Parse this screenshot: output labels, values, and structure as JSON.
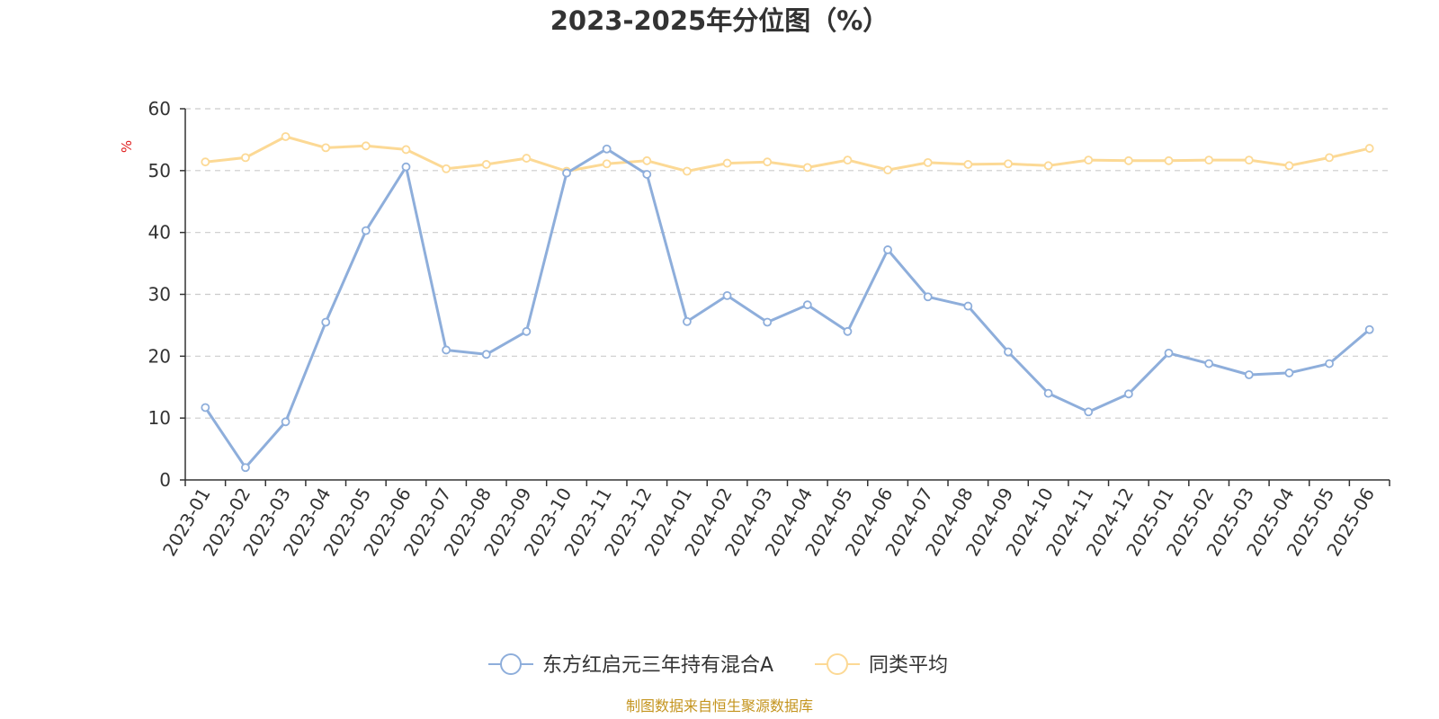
{
  "chart_data": {
    "type": "line",
    "title": "2023-2025年分位图（%）",
    "ylabel": "%",
    "xlabel": "",
    "ylim": [
      0,
      60
    ],
    "yticks": [
      0,
      10,
      20,
      30,
      40,
      50,
      60
    ],
    "grid": true,
    "legend_position": "bottom-center",
    "categories": [
      "2023-01",
      "2023-02",
      "2023-03",
      "2023-04",
      "2023-05",
      "2023-06",
      "2023-07",
      "2023-08",
      "2023-09",
      "2023-10",
      "2023-11",
      "2023-12",
      "2024-01",
      "2024-02",
      "2024-03",
      "2024-04",
      "2024-05",
      "2024-06",
      "2024-07",
      "2024-08",
      "2024-09",
      "2024-10",
      "2024-11",
      "2024-12",
      "2025-01",
      "2025-02",
      "2025-03",
      "2025-04",
      "2025-05",
      "2025-06"
    ],
    "series": [
      {
        "name": "东方红启元三年持有混合A",
        "color": "#8eaedb",
        "values": [
          11.7,
          2.0,
          9.4,
          25.5,
          40.3,
          50.6,
          21.0,
          20.3,
          24.0,
          49.6,
          53.5,
          49.4,
          25.6,
          29.8,
          25.5,
          28.3,
          24.0,
          37.2,
          29.6,
          28.1,
          20.7,
          14.0,
          11.0,
          13.9,
          20.5,
          18.8,
          17.0,
          17.3,
          18.8,
          24.3
        ]
      },
      {
        "name": "同类平均",
        "color": "#fcd995",
        "values": [
          51.4,
          52.1,
          55.5,
          53.7,
          54.0,
          53.4,
          50.3,
          51.0,
          52.0,
          49.9,
          51.1,
          51.6,
          49.9,
          51.2,
          51.4,
          50.5,
          51.7,
          50.1,
          51.3,
          51.0,
          51.1,
          50.8,
          51.7,
          51.6,
          51.6,
          51.7,
          51.7,
          50.8,
          52.1,
          53.6
        ]
      }
    ]
  },
  "source": {
    "text": "制图数据来自恒生聚源数据库",
    "color": "#c4941e"
  },
  "colors": {
    "unit_label": "#e02020",
    "axis": "#333333",
    "grid": "#cccccc"
  }
}
